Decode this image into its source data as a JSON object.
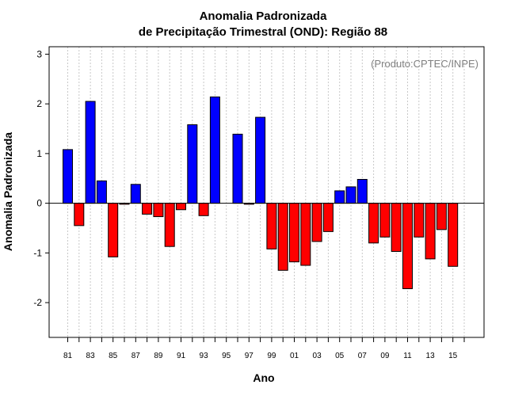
{
  "chart_data": {
    "type": "bar",
    "title": "Anomalia Padronizada",
    "subtitle": "de Precipitação Trimestral (OND): Região 88",
    "xlabel": "Ano",
    "ylabel": "Anomalia Padronizada",
    "annotation": "(Produto:CPTEC/INPE)",
    "ylim": [
      -2.7,
      3.15
    ],
    "yticks": [
      -2,
      -1,
      0,
      1,
      2,
      3
    ],
    "grid": true,
    "x_tick_labels": [
      "81",
      "83",
      "85",
      "87",
      "89",
      "91",
      "93",
      "95",
      "97",
      "99",
      "01",
      "03",
      "05",
      "07",
      "09",
      "11",
      "13",
      "15"
    ],
    "categories": [
      "1981",
      "1982",
      "1983",
      "1984",
      "1985",
      "1986",
      "1987",
      "1988",
      "1989",
      "1990",
      "1991",
      "1992",
      "1993",
      "1994",
      "1995",
      "1996",
      "1997",
      "1998",
      "1999",
      "2000",
      "2001",
      "2002",
      "2003",
      "2004",
      "2005",
      "2006",
      "2007",
      "2008",
      "2009",
      "2010",
      "2011",
      "2012",
      "2013",
      "2014",
      "2015"
    ],
    "values": [
      1.08,
      -0.45,
      2.05,
      0.45,
      -1.08,
      -0.02,
      0.38,
      -0.22,
      -0.27,
      -0.87,
      -0.13,
      1.58,
      -0.25,
      2.14,
      0.0,
      1.39,
      -0.02,
      1.73,
      -0.92,
      -1.35,
      -1.18,
      -1.25,
      -0.77,
      -0.57,
      0.25,
      0.33,
      0.48,
      -0.8,
      -0.68,
      -0.97,
      -1.72,
      -0.68,
      -1.12,
      -0.53,
      -1.27
    ],
    "positive_color": "#0000ff",
    "negative_color": "#ff0000"
  }
}
